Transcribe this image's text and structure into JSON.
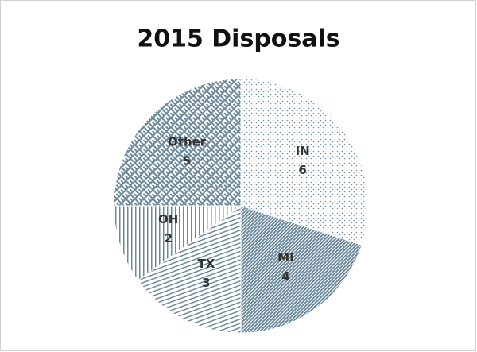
{
  "chart_data": {
    "type": "pie",
    "title": "2015 Disposals",
    "categories": [
      "IN",
      "MI",
      "TX",
      "OH",
      "Other"
    ],
    "values": [
      6,
      4,
      3,
      2,
      5
    ],
    "color": "#6d8a9c"
  }
}
